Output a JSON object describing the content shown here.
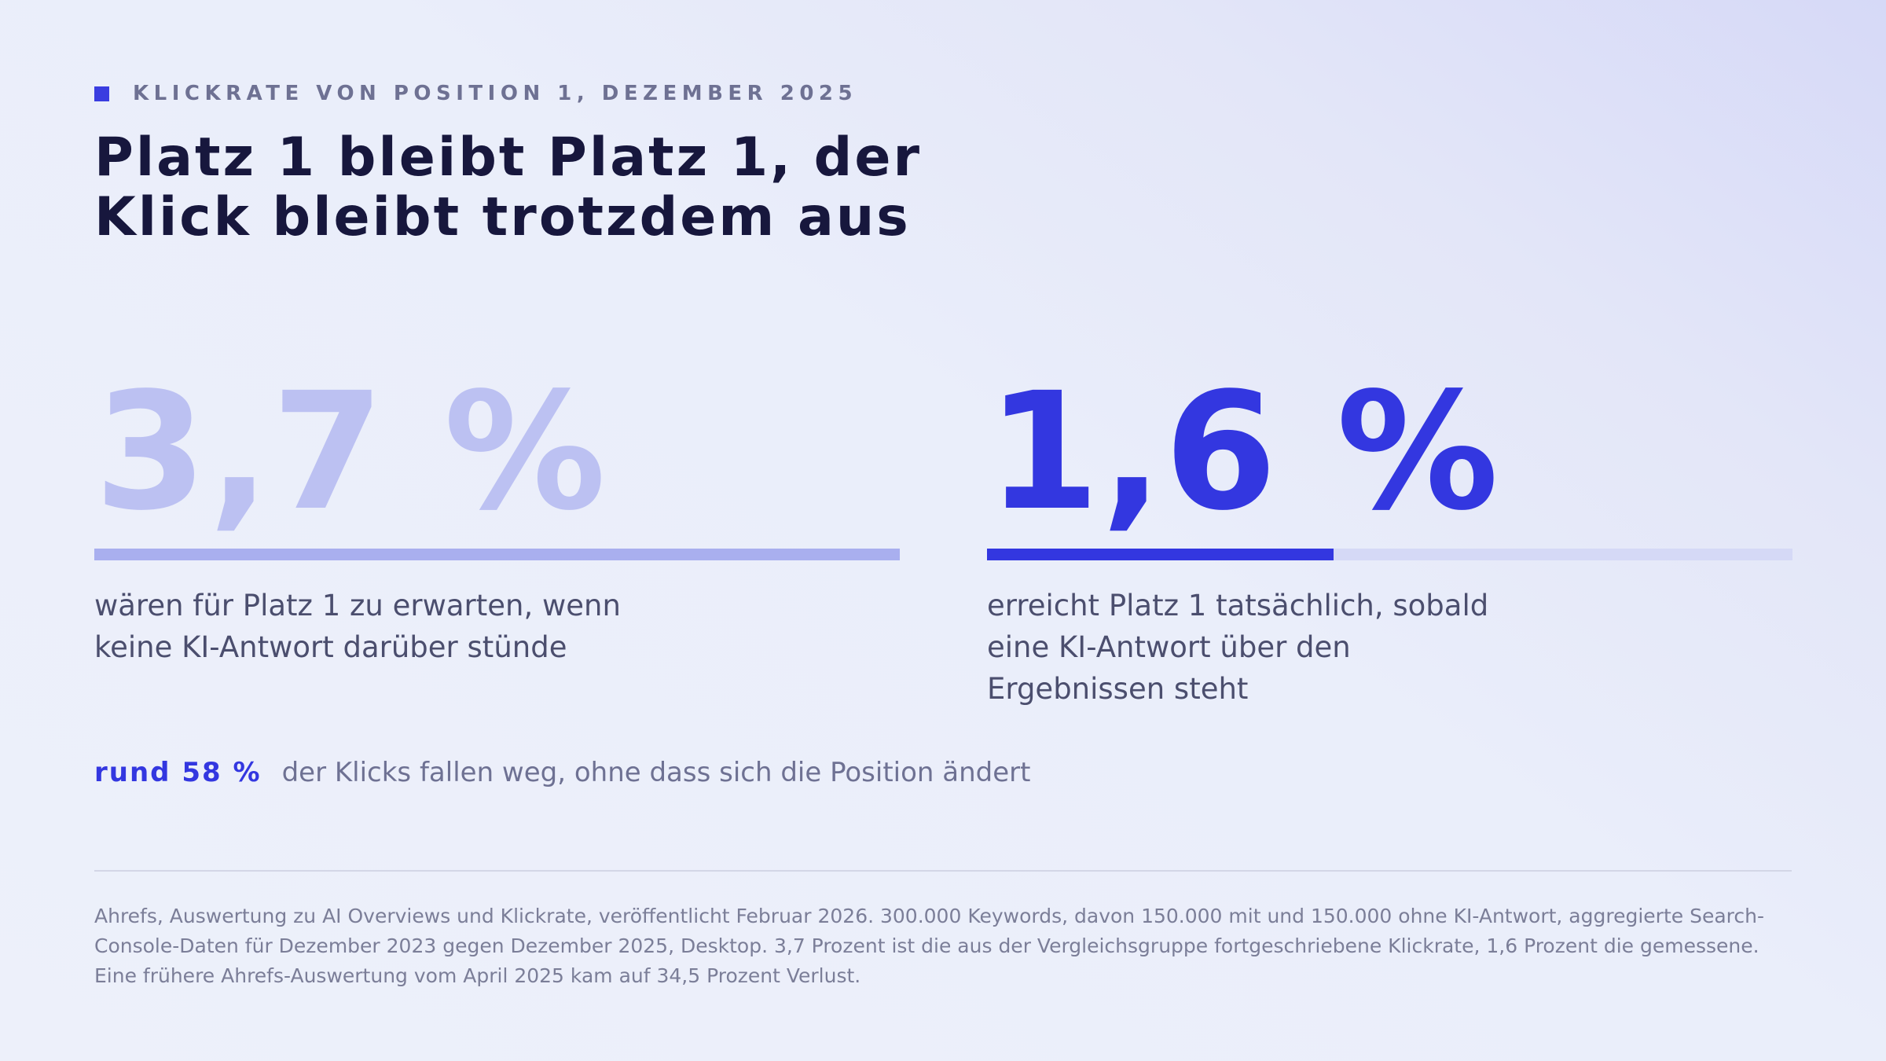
{
  "eyebrow": {
    "text": "KLICKRATE VON POSITION 1, DEZEMBER 2025",
    "accent_color": "#3a3de0"
  },
  "headline": {
    "line1": "Platz 1 bleibt Platz 1, der",
    "line2": "Klick bleibt trotzdem aus"
  },
  "stats": [
    {
      "value": "3,7 %",
      "bar_fill_fraction": 1.0,
      "color": "#bcc1f2",
      "caption_line1": "wären für Platz 1 zu erwarten, wenn",
      "caption_line2": "keine KI-Antwort darüber stünde"
    },
    {
      "value": "1,6 %",
      "bar_fill_fraction": 0.43,
      "color": "#3337e0",
      "caption_line1": "erreicht Platz 1 tatsächlich, sobald",
      "caption_line2": "eine KI-Antwort über den",
      "caption_line3": "Ergebnissen steht"
    }
  ],
  "summary": {
    "highlight": "rund 58 %",
    "text": "der Klicks fallen weg, ohne dass sich die Position ändert"
  },
  "source": {
    "text": "Ahrefs, Auswertung zu AI Overviews und Klickrate, veröffentlicht Februar 2026. 300.000 Keywords, davon 150.000 mit und 150.000 ohne KI-Antwort, aggregierte Search-Console-Daten für Dezember 2023 gegen Dezember 2025, Desktop. 3,7 Prozent ist die aus der Vergleichsgruppe fortgeschriebene Klickrate, 1,6 Prozent die gemessene. Eine frühere Ahrefs-Auswertung vom April 2025 kam auf 34,5 Prozent Verlust."
  }
}
